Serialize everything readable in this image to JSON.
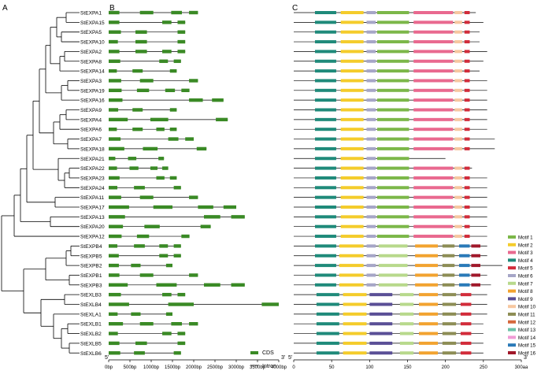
{
  "panels": {
    "a": "A",
    "b": "B",
    "c": "C"
  },
  "genes": [
    "StEXPA1",
    "StEXPA15",
    "StEXPA5",
    "StEXPA10",
    "StEXPA2",
    "StEXPA8",
    "StEXPA14",
    "StEXPA3",
    "StEXPA19",
    "StEXPA16",
    "StEXPA9",
    "StEXPA4",
    "StEXPA6",
    "StEXPA7",
    "StEXPA18",
    "StEXPA21",
    "StEXPA22",
    "StEXPA23",
    "StEXPA24",
    "StEXPA11",
    "StEXPA17",
    "StEXPA13",
    "StEXPA20",
    "StEXPA12",
    "StEXPB4",
    "StEXPB5",
    "StEXPB2",
    "StEXPB1",
    "StEXPB3",
    "StEXLB3",
    "StEXLB4",
    "StEXLA1",
    "StEXLB1",
    "StEXLB2",
    "StEXLB5",
    "StEXLB6"
  ],
  "panel_b": {
    "axis_ticks": [
      "0bp",
      "500bp",
      "1000bp",
      "1500bp",
      "2000bp",
      "2500bp",
      "3000bp",
      "3500bp",
      "4000bp"
    ],
    "end_5": "5'",
    "end_3": "3'",
    "legend": [
      {
        "label": "CDS",
        "color": "#3a8a25"
      },
      {
        "label": "Intron",
        "color": "#000000"
      }
    ],
    "gene_length_bp": [
      2100,
      1800,
      1800,
      1800,
      1800,
      1700,
      1600,
      2100,
      1900,
      2700,
      1600,
      2800,
      1600,
      2000,
      2300,
      1300,
      1400,
      1600,
      1700,
      2100,
      3000,
      3200,
      2400,
      1900,
      1700,
      1700,
      1500,
      2100,
      3200,
      1800,
      4000,
      1500,
      2100,
      1800,
      1800,
      1700
    ]
  },
  "panel_c": {
    "axis_ticks": [
      "0",
      "50",
      "100",
      "150",
      "200",
      "250",
      "300aa"
    ],
    "end_5": "5'",
    "end_3": "3'",
    "motif_legend": [
      {
        "label": "Motif 1",
        "color": "#7cb749"
      },
      {
        "label": "Motif 2",
        "color": "#f4cc2b"
      },
      {
        "label": "Motif 3",
        "color": "#e9698f"
      },
      {
        "label": "Motif 4",
        "color": "#1f8a7a"
      },
      {
        "label": "Motif 5",
        "color": "#d22c3a"
      },
      {
        "label": "Motif 6",
        "color": "#a6a6c7"
      },
      {
        "label": "Motif 7",
        "color": "#b8d98c"
      },
      {
        "label": "Motif 8",
        "color": "#f2a330"
      },
      {
        "label": "Motif 9",
        "color": "#5a4f96"
      },
      {
        "label": "Motif 10",
        "color": "#f7c7a0"
      },
      {
        "label": "Motif 11",
        "color": "#8d8d55"
      },
      {
        "label": "Motif 12",
        "color": "#d5683d"
      },
      {
        "label": "Motif 13",
        "color": "#6cc2a8"
      },
      {
        "label": "Motif 14",
        "color": "#f09bd6"
      },
      {
        "label": "Motif 15",
        "color": "#2a7ab8"
      },
      {
        "label": "Motif 16",
        "color": "#a0182a"
      }
    ],
    "protein_length_aa": [
      240,
      250,
      245,
      245,
      255,
      250,
      245,
      255,
      255,
      255,
      255,
      255,
      255,
      265,
      265,
      200,
      235,
      255,
      255,
      255,
      255,
      255,
      255,
      255,
      255,
      255,
      275,
      255,
      260,
      255,
      255,
      255,
      250,
      250,
      250,
      250
    ]
  }
}
